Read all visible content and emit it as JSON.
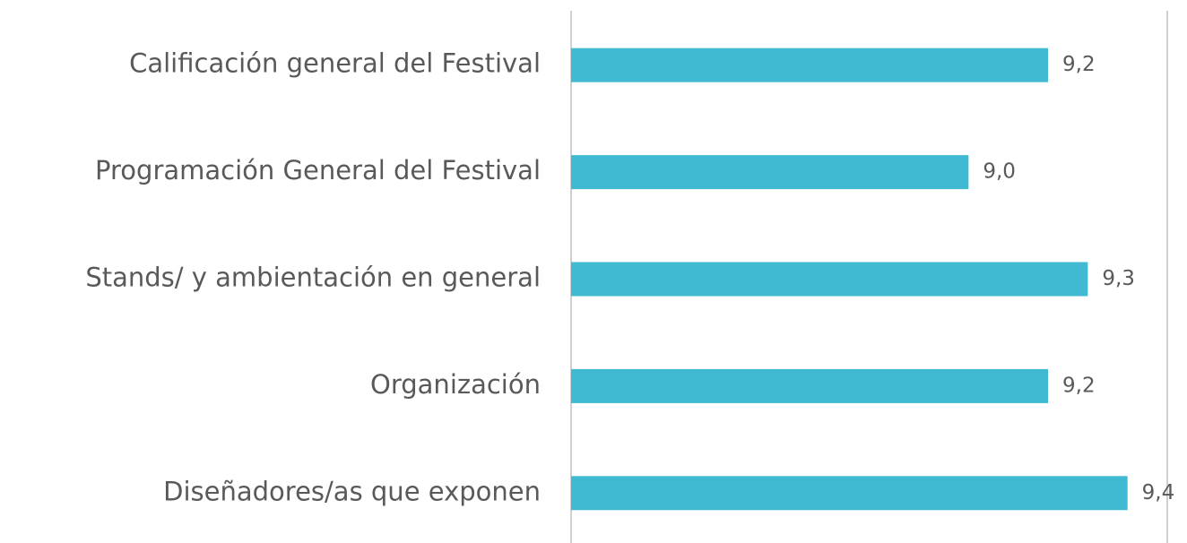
{
  "chart_data": {
    "type": "barh",
    "categories": [
      "Calificación general del Festival",
      "Programación General del Festival",
      "Stands/ y ambientación en general",
      "Organización",
      "Diseñadores/as que exponen"
    ],
    "values": [
      9.2,
      9.0,
      9.3,
      9.2,
      9.4
    ],
    "value_labels": [
      "9,2",
      "9,0",
      "9,3",
      "9,2",
      "9,4"
    ],
    "color": "#40bad2",
    "xlim": [
      8,
      9.5
    ]
  }
}
